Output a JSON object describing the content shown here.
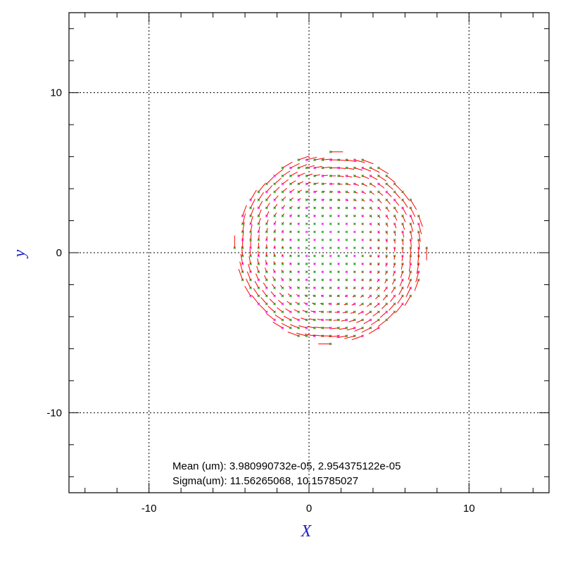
{
  "chart_data": {
    "type": "vector-field",
    "xlabel": "X",
    "ylabel": "y",
    "xlim": [
      -15,
      15
    ],
    "ylim": [
      -15,
      15
    ],
    "xticks_major": [
      -10,
      0,
      10
    ],
    "yticks_major": [
      -10,
      0,
      10
    ],
    "tick_labels_x": [
      "-10",
      "0",
      "10"
    ],
    "tick_labels_y": [
      "10",
      "0",
      "-10"
    ],
    "grid": true,
    "grid_style": "dotted",
    "field": {
      "center": [
        1.35,
        0.3
      ],
      "radius": 6.0,
      "step": 0.5,
      "point_color": "#00a000",
      "point_alt_color": "#ff00ff",
      "arrow_color": "#ff0000",
      "arrow_scale": 0.13
    },
    "annotations": {
      "mean": "Mean (um): 3.980990732e-05, 2.954375122e-05",
      "sigma": "Sigma(um): 11.56265068, 10.15785027"
    }
  }
}
